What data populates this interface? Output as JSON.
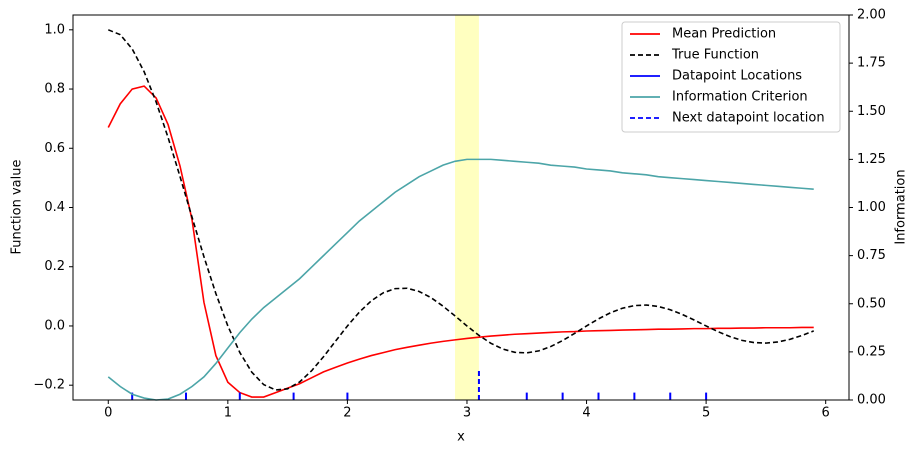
{
  "chart_data": {
    "type": "line",
    "xlabel": "x",
    "ylabel": "Function value",
    "y2label": "Information",
    "xlim": [
      -0.295,
      6.195
    ],
    "ylim": [
      -0.25,
      1.05
    ],
    "y2lim": [
      0,
      2
    ],
    "xticks": [
      0,
      1,
      2,
      3,
      4,
      5,
      6
    ],
    "yticks": [
      {
        "value": -0.2,
        "label": "−0.2"
      },
      {
        "value": 0,
        "label": "0.0"
      },
      0.2,
      0.4,
      0.6,
      0.8,
      {
        "value": 1,
        "label": "1.0"
      }
    ],
    "y2ticks": [
      {
        "value": 0,
        "label": "0.00"
      },
      0.25,
      {
        "value": 0.5,
        "label": "0.50"
      },
      0.75,
      {
        "value": 1,
        "label": "1.00"
      },
      1.25,
      {
        "value": 1.5,
        "label": "1.50"
      },
      1.75,
      {
        "value": 2,
        "label": "2.00"
      }
    ],
    "legend": "upper right",
    "highlight": [
      2.9,
      3.1
    ],
    "highlight_color": "#ffffc0",
    "x": [
      0,
      0.1,
      0.2,
      0.3,
      0.4,
      0.5,
      0.6,
      0.7,
      0.8,
      0.9,
      1,
      1.1,
      1.2,
      1.3,
      1.4,
      1.5,
      1.6,
      1.7,
      1.8,
      1.9,
      2,
      2.1,
      2.2,
      2.3,
      2.4,
      2.5,
      2.6,
      2.7,
      2.8,
      2.9,
      3,
      3.1,
      3.2,
      3.3,
      3.4,
      3.5,
      3.6,
      3.7,
      3.8,
      3.9,
      4,
      4.1,
      4.2,
      4.3,
      4.4,
      4.5,
      4.6,
      4.7,
      4.8,
      4.9,
      5,
      5.1,
      5.2,
      5.3,
      5.4,
      5.5,
      5.6,
      5.7,
      5.8,
      5.9
    ],
    "series": [
      {
        "name": "Mean Prediction",
        "color": "#ff0000",
        "values": [
          0.67,
          0.75,
          0.8,
          0.81,
          0.77,
          0.68,
          0.54,
          0.36,
          0.08,
          -0.1,
          -0.19,
          -0.225,
          -0.24,
          -0.24,
          -0.225,
          -0.21,
          -0.195,
          -0.175,
          -0.155,
          -0.14,
          -0.125,
          -0.112,
          -0.1,
          -0.09,
          -0.08,
          -0.072,
          -0.065,
          -0.058,
          -0.052,
          -0.047,
          -0.042,
          -0.038,
          -0.034,
          -0.031,
          -0.028,
          -0.026,
          -0.024,
          -0.022,
          -0.02,
          -0.019,
          -0.017,
          -0.016,
          -0.015,
          -0.014,
          -0.013,
          -0.012,
          -0.011,
          -0.011,
          -0.01,
          -0.009,
          -0.009,
          -0.008,
          -0.008,
          -0.007,
          -0.007,
          -0.006,
          -0.006,
          -0.006,
          -0.005,
          -0.005
        ]
      },
      {
        "name": "True Function",
        "color": "#000000",
        "dashed": true,
        "values": [
          1,
          0.9836,
          0.9355,
          0.8584,
          0.7568,
          0.6366,
          0.5046,
          0.3679,
          0.2339,
          0.1093,
          0,
          -0.0894,
          -0.1559,
          -0.1981,
          -0.2162,
          -0.2122,
          -0.1892,
          -0.1515,
          -0.1039,
          -0.0518,
          0,
          0.0468,
          0.085,
          0.112,
          0.1261,
          0.1273,
          0.1164,
          0.0954,
          0.0668,
          0.0339,
          0,
          -0.0317,
          -0.0585,
          -0.078,
          -0.089,
          -0.0909,
          -0.0841,
          -0.0696,
          -0.0492,
          -0.0252,
          0,
          0.024,
          0.0445,
          0.0599,
          0.0688,
          0.0707,
          0.0658,
          0.0548,
          0.039,
          0.0201,
          0,
          -0.0193,
          -0.036,
          -0.0486,
          -0.0561,
          -0.0579,
          -0.0541,
          -0.0452,
          -0.0323,
          -0.0167
        ]
      },
      {
        "name": "Datapoint Locations",
        "color": "#0000ff",
        "kind": "vlines",
        "x": [
          0.2,
          0.65,
          1.1,
          1.55,
          2,
          3.5,
          3.8,
          4.1,
          4.4,
          4.7,
          5
        ],
        "values": [
          -0.225,
          -0.225,
          -0.225,
          -0.225,
          -0.225,
          -0.225,
          -0.225,
          -0.225,
          -0.225,
          -0.225,
          -0.225
        ]
      },
      {
        "name": "Information Criterion",
        "color": "#4ca5a8",
        "axis": "y2",
        "values": [
          0.12,
          0.07,
          0.03,
          0.01,
          0,
          0.005,
          0.03,
          0.07,
          0.12,
          0.19,
          0.27,
          0.35,
          0.42,
          0.48,
          0.53,
          0.58,
          0.63,
          0.69,
          0.75,
          0.81,
          0.87,
          0.93,
          0.98,
          1.03,
          1.08,
          1.12,
          1.16,
          1.19,
          1.22,
          1.24,
          1.25,
          1.25,
          1.25,
          1.245,
          1.24,
          1.235,
          1.23,
          1.22,
          1.215,
          1.21,
          1.2,
          1.195,
          1.19,
          1.18,
          1.175,
          1.17,
          1.16,
          1.155,
          1.15,
          1.145,
          1.14,
          1.135,
          1.13,
          1.125,
          1.12,
          1.115,
          1.11,
          1.105,
          1.1,
          1.095
        ]
      },
      {
        "name": "Next datapoint location",
        "color": "#0000ff",
        "kind": "vlines",
        "dashed": true,
        "x": [
          3.1
        ],
        "values": [
          -0.15
        ]
      }
    ]
  }
}
